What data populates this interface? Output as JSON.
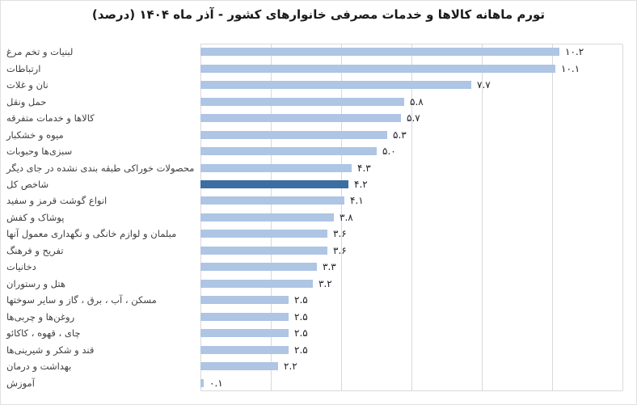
{
  "title": "تورم ماهانه کالاها و خدمات مصرفی خانوارهای کشور - آذر ماه ۱۴۰۴ (درصد)",
  "colors": {
    "bar": "#aec5e3",
    "highlight_bar": "#3b6ea3",
    "gridline": "#d9d9d9",
    "title_text": "#1a1a1a",
    "category_text": "#3f3f3f",
    "value_text": "#21212b",
    "border": "#e0e0e0",
    "background": "#ffffff"
  },
  "chart_data": {
    "type": "bar",
    "orientation": "horizontal",
    "title": "تورم ماهانه کالاها و خدمات مصرفی خانوارهای کشور - آذر ماه ۱۴۰۴ (درصد)",
    "xlabel": "",
    "ylabel": "",
    "xlim": [
      0,
      12
    ],
    "gridline_step": 2,
    "grid": true,
    "legend": false,
    "categories": [
      "لبنیات و تخم مرغ",
      "ارتباطات",
      "نان و غلات",
      "حمل ونقل",
      "کالاها و خدمات متفرقه",
      "میوه و خشکبار",
      "سبزی‌ها وحبوبات",
      "محصولات خوراکی طبقه بندی نشده در جای دیگر",
      "شاخص کل",
      "انواع گوشت قرمز و سفید",
      "پوشاک و کفش",
      "مبلمان و لوازم خانگی و نگهداری معمول آنها",
      "تفریح و فرهنگ",
      "دخانیات",
      "هتل و رستوران",
      "مسکن ، آب ، برق ، گاز و سایر سوختها",
      "روغن‌ها و چربی‌ها",
      "چای ، قهوه ، کاکائو",
      "قند و شکر و شیرینی‌ها",
      "بهداشت و درمان",
      "آموزش"
    ],
    "values": [
      10.2,
      10.1,
      7.7,
      5.8,
      5.7,
      5.3,
      5.0,
      4.3,
      4.2,
      4.1,
      3.8,
      3.6,
      3.6,
      3.3,
      3.2,
      2.5,
      2.5,
      2.5,
      2.5,
      2.2,
      0.1
    ],
    "value_labels": [
      "۱۰.۲",
      "۱۰.۱",
      "۷.۷",
      "۵.۸",
      "۵.۷",
      "۵.۳",
      "۵.۰",
      "۴.۳",
      "۴.۲",
      "۴.۱",
      "۳.۸",
      "۳.۶",
      "۳.۶",
      "۳.۳",
      "۳.۲",
      "۲.۵",
      "۲.۵",
      "۲.۵",
      "۲.۵",
      "۲.۲",
      "۰.۱"
    ],
    "highlight_category": "شاخص کل",
    "highlight_index": 8
  }
}
